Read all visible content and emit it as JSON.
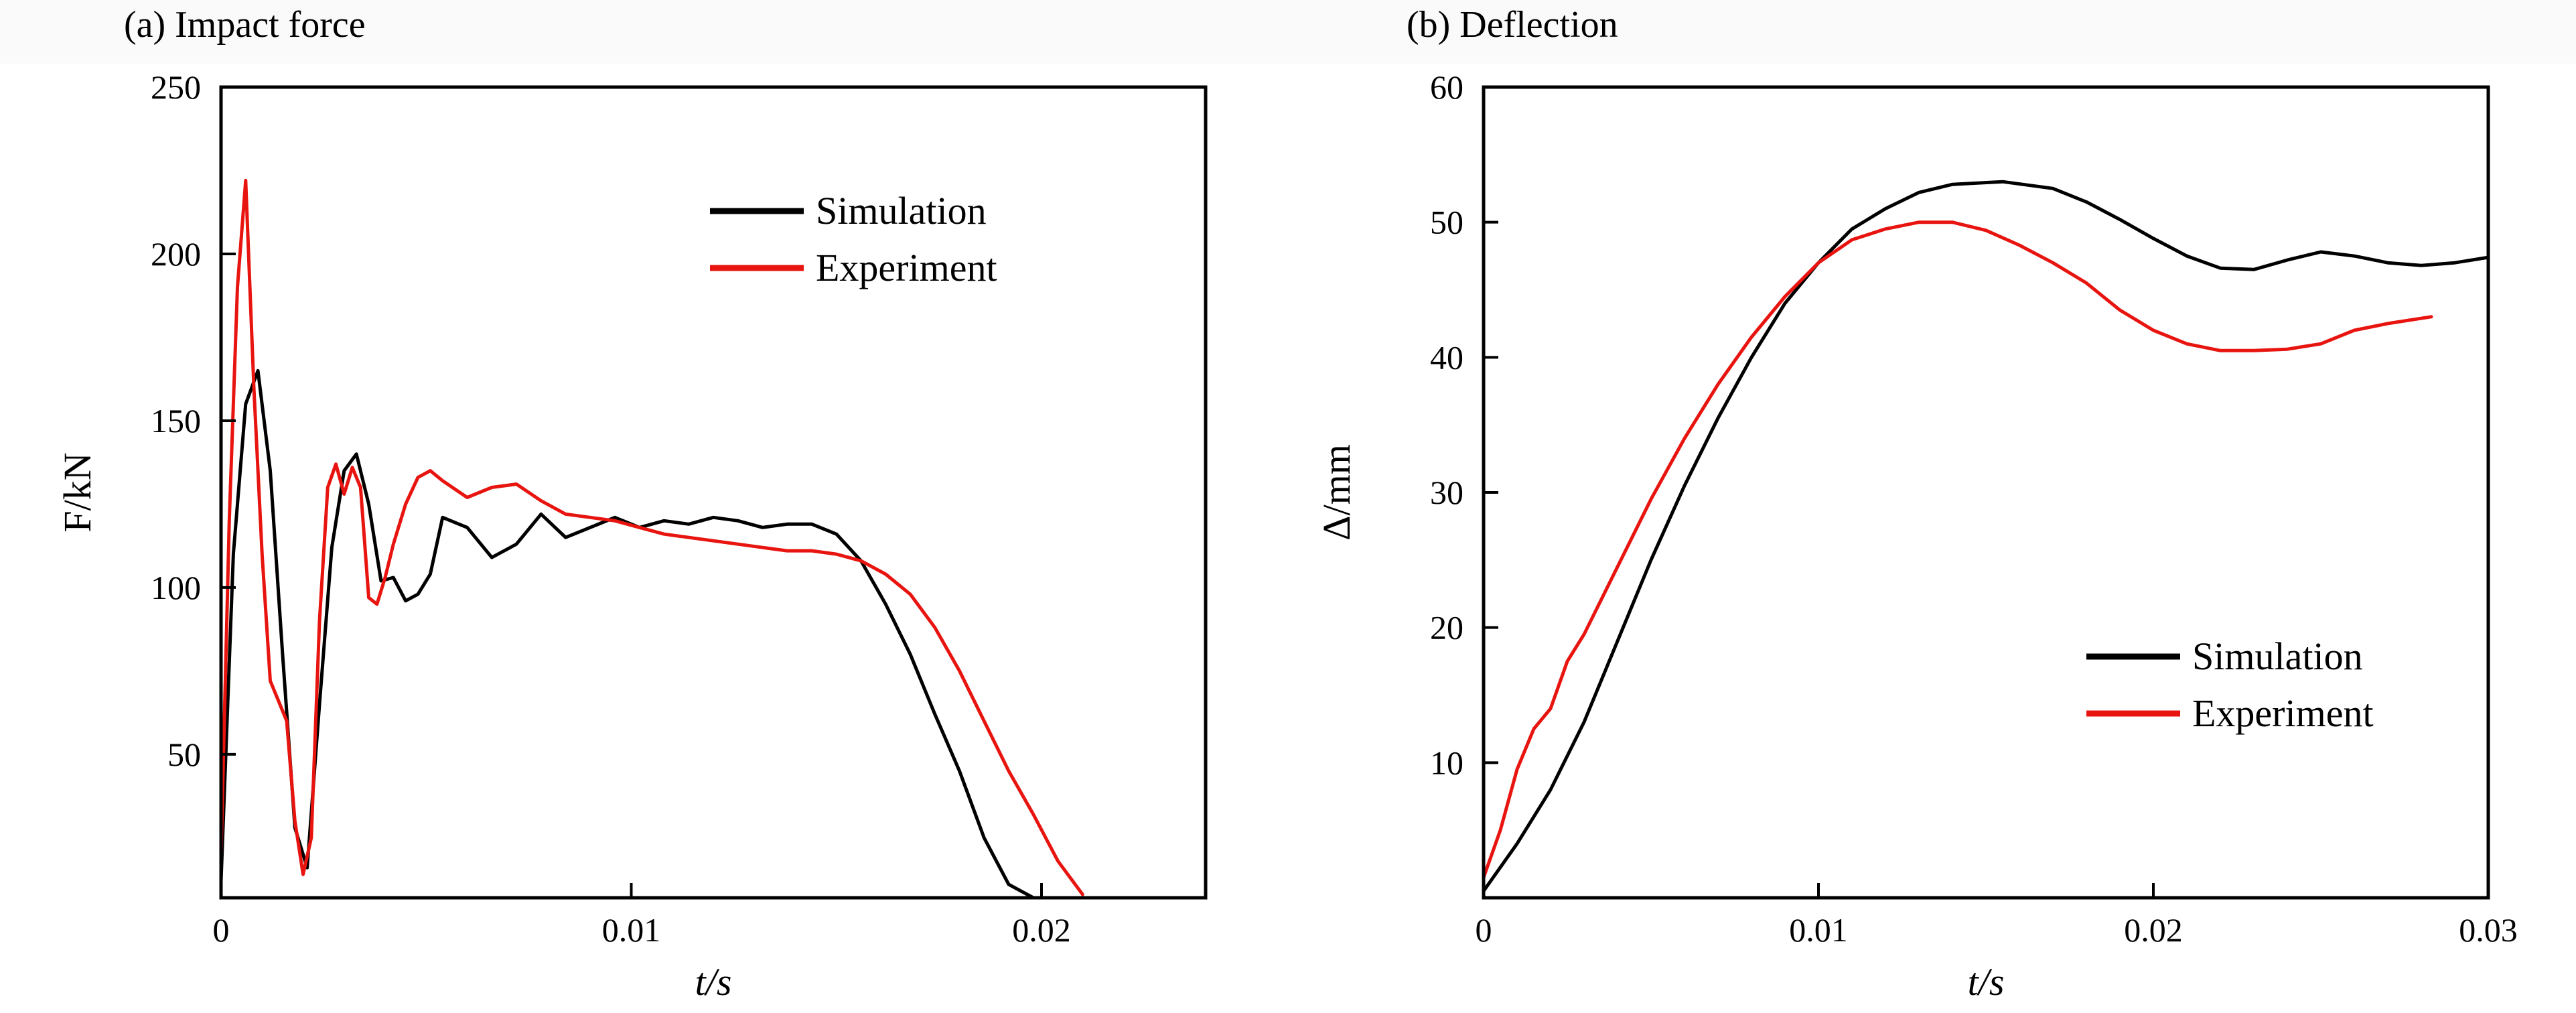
{
  "chart_data": [
    {
      "panel_label": "(a) Impact force",
      "type": "line",
      "xlabel": "t/s",
      "ylabel": "F/kN",
      "xlim": [
        0,
        0.024
      ],
      "ylim": [
        7,
        250
      ],
      "xticks": [
        0,
        0.01,
        0.02
      ],
      "xtick_labels": [
        "0",
        "0.01",
        "0.02"
      ],
      "yticks": [
        50,
        100,
        150,
        200,
        250
      ],
      "ytick_labels": [
        "50",
        "100",
        "150",
        "200",
        "250"
      ],
      "grid": false,
      "legend": "top-right",
      "series": [
        {
          "name": "Simulation",
          "color": "#000000",
          "x": [
            0,
            0.0003,
            0.0006,
            0.0009,
            0.0012,
            0.0015,
            0.0018,
            0.0021,
            0.0024,
            0.0027,
            0.003,
            0.0033,
            0.0036,
            0.0039,
            0.0042,
            0.0045,
            0.0048,
            0.0051,
            0.0054,
            0.006,
            0.0066,
            0.0072,
            0.0078,
            0.0084,
            0.009,
            0.0096,
            0.0102,
            0.0108,
            0.0114,
            0.012,
            0.0126,
            0.0132,
            0.0138,
            0.0144,
            0.015,
            0.0156,
            0.0162,
            0.0168,
            0.0174,
            0.018,
            0.0186,
            0.0192,
            0.0198
          ],
          "y": [
            12,
            110,
            155,
            165,
            135,
            80,
            28,
            16,
            65,
            112,
            135,
            140,
            125,
            102,
            103,
            96,
            98,
            104,
            121,
            118,
            109,
            113,
            122,
            115,
            118,
            121,
            118,
            120,
            119,
            121,
            120,
            118,
            119,
            119,
            116,
            108,
            95,
            80,
            62,
            45,
            25,
            11,
            7
          ]
        },
        {
          "name": "Experiment",
          "color": "#e8140f",
          "x": [
            0,
            0.0002,
            0.0004,
            0.0006,
            0.0008,
            0.001,
            0.0012,
            0.0014,
            0.0016,
            0.0018,
            0.002,
            0.0022,
            0.0024,
            0.0026,
            0.0028,
            0.003,
            0.0032,
            0.0034,
            0.0036,
            0.0038,
            0.004,
            0.0042,
            0.0045,
            0.0048,
            0.0051,
            0.0054,
            0.006,
            0.0066,
            0.0072,
            0.0078,
            0.0084,
            0.009,
            0.0096,
            0.0102,
            0.0108,
            0.0114,
            0.012,
            0.0126,
            0.0132,
            0.0138,
            0.0144,
            0.015,
            0.0156,
            0.0162,
            0.0168,
            0.0174,
            0.018,
            0.0186,
            0.0192,
            0.0198,
            0.0204,
            0.021
          ],
          "y": [
            20,
            120,
            190,
            222,
            160,
            110,
            72,
            66,
            60,
            30,
            14,
            25,
            90,
            130,
            137,
            128,
            136,
            130,
            97,
            95,
            103,
            113,
            125,
            133,
            135,
            132,
            127,
            130,
            131,
            126,
            122,
            121,
            120,
            118,
            116,
            115,
            114,
            113,
            112,
            111,
            111,
            110,
            108,
            104,
            98,
            88,
            75,
            60,
            45,
            32,
            18,
            8
          ]
        }
      ]
    },
    {
      "panel_label": "(b) Deflection",
      "type": "line",
      "xlabel": "t/s",
      "ylabel": "Δ/mm",
      "xlim": [
        0,
        0.03
      ],
      "ylim": [
        0,
        60
      ],
      "xticks": [
        0,
        0.01,
        0.02,
        0.03
      ],
      "xtick_labels": [
        "0",
        "0.01",
        "0.02",
        "0.03"
      ],
      "yticks": [
        10,
        20,
        30,
        40,
        50,
        60
      ],
      "ytick_labels": [
        "10",
        "20",
        "30",
        "40",
        "50",
        "60"
      ],
      "grid": false,
      "legend": "bottom-right",
      "series": [
        {
          "name": "Simulation",
          "color": "#000000",
          "x": [
            0,
            0.001,
            0.002,
            0.003,
            0.004,
            0.005,
            0.006,
            0.007,
            0.008,
            0.009,
            0.01,
            0.011,
            0.012,
            0.013,
            0.014,
            0.0155,
            0.017,
            0.018,
            0.019,
            0.02,
            0.021,
            0.022,
            0.023,
            0.024,
            0.025,
            0.026,
            0.027,
            0.028,
            0.029,
            0.03
          ],
          "y": [
            0.5,
            4,
            8,
            13,
            19,
            25,
            30.5,
            35.5,
            40,
            44,
            47,
            49.5,
            51,
            52.2,
            52.8,
            53,
            52.5,
            51.5,
            50.2,
            48.8,
            47.5,
            46.6,
            46.5,
            47.2,
            47.8,
            47.5,
            47,
            46.8,
            47,
            47.4
          ]
        },
        {
          "name": "Experiment",
          "color": "#e8140f",
          "x": [
            0,
            0.0005,
            0.001,
            0.0015,
            0.002,
            0.0025,
            0.003,
            0.004,
            0.005,
            0.006,
            0.007,
            0.008,
            0.009,
            0.01,
            0.011,
            0.012,
            0.013,
            0.014,
            0.015,
            0.016,
            0.017,
            0.018,
            0.019,
            0.02,
            0.021,
            0.022,
            0.023,
            0.024,
            0.025,
            0.026,
            0.027,
            0.0283
          ],
          "y": [
            1.5,
            5,
            9.5,
            12.5,
            14,
            17.5,
            19.5,
            24.5,
            29.5,
            34,
            38,
            41.5,
            44.5,
            47,
            48.7,
            49.5,
            50,
            50,
            49.4,
            48.3,
            47,
            45.5,
            43.5,
            42,
            41,
            40.5,
            40.5,
            40.6,
            41,
            42,
            42.5,
            43
          ]
        }
      ]
    }
  ]
}
